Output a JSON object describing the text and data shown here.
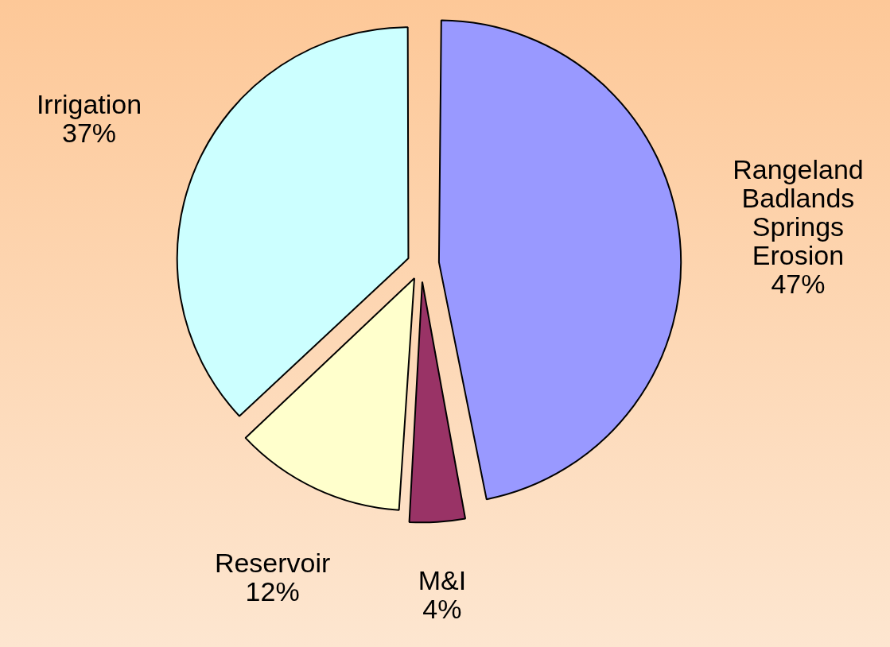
{
  "chart_data": {
    "type": "pie",
    "categories": [
      "Rangeland Badlands Springs Erosion",
      "M&I",
      "Reservoir",
      "Irrigation"
    ],
    "values": [
      47,
      4,
      12,
      37
    ],
    "value_labels": [
      "47%",
      "4%",
      "12%",
      "37%"
    ],
    "colors": [
      "#9999ff",
      "#993366",
      "#ffffcc",
      "#ccffff"
    ],
    "legend": false
  }
}
